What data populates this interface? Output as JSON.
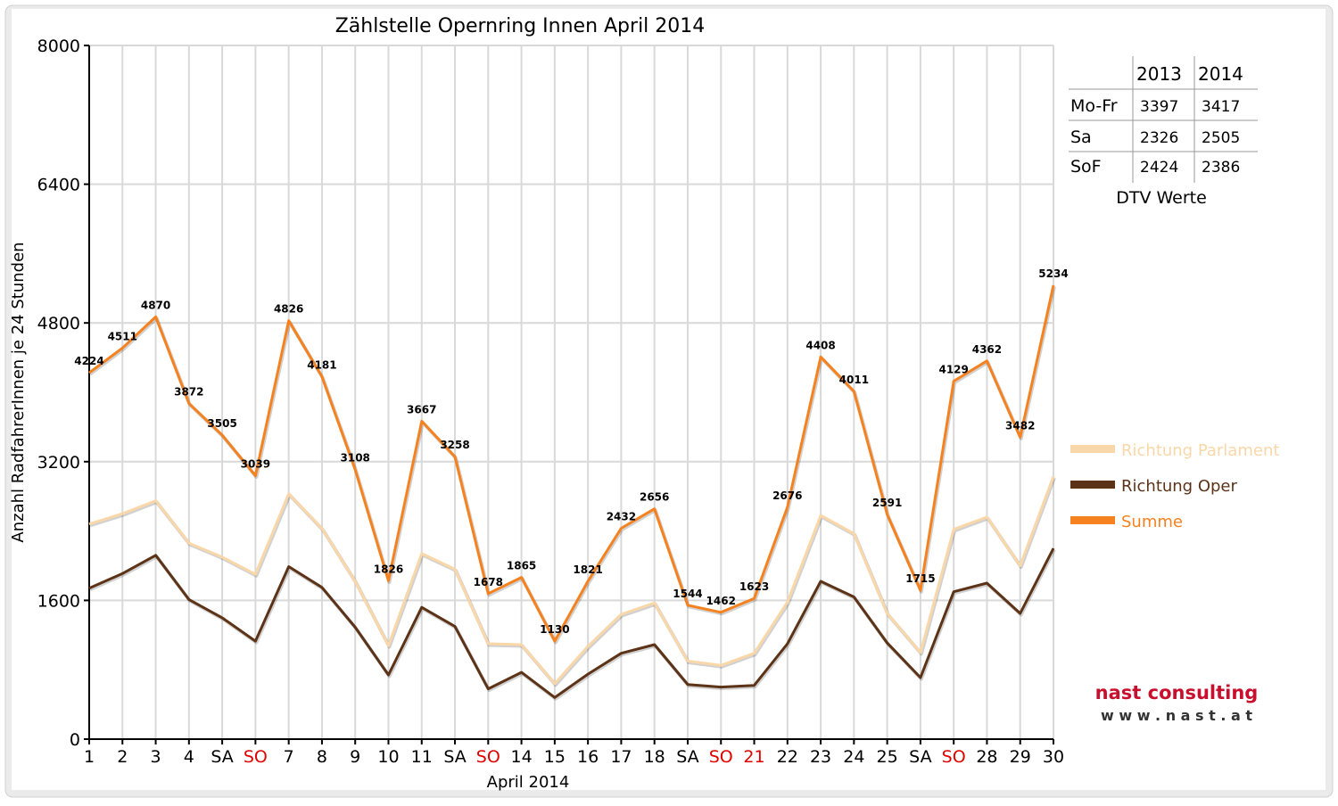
{
  "chart_data": {
    "type": "line",
    "title": "Zählstelle Opernring Innen April 2014",
    "xlabel": "April 2014",
    "ylabel": "Anzahl RadfahrerInnen je 24 Stunden",
    "ylim": [
      0,
      8000
    ],
    "yticks": [
      "0",
      "1600",
      "3200",
      "4800",
      "6400",
      "8000"
    ],
    "grid": true,
    "legend_position": "right",
    "categories": [
      "1",
      "2",
      "3",
      "4",
      "SA",
      "SO",
      "7",
      "8",
      "9",
      "10",
      "11",
      "SA",
      "SO",
      "14",
      "15",
      "16",
      "17",
      "18",
      "SA",
      "SO",
      "21",
      "22",
      "23",
      "24",
      "25",
      "SA",
      "SO",
      "28",
      "29",
      "30"
    ],
    "red_categories": [
      5,
      12,
      19,
      20,
      26
    ],
    "series": [
      {
        "name": "Richtung Parlament",
        "color": "#FAD7A8",
        "values": [
          2480,
          2600,
          2750,
          2260,
          2100,
          1900,
          2830,
          2430,
          1820,
          1080,
          2140,
          1960,
          1100,
          1090,
          640,
          1070,
          1440,
          1570,
          900,
          850,
          990,
          1580,
          2580,
          2370,
          1450,
          1000,
          2420,
          2560,
          2000,
          3030
        ]
      },
      {
        "name": "Richtung Oper",
        "color": "#5C3317",
        "values": [
          1740,
          1910,
          2120,
          1610,
          1400,
          1130,
          1990,
          1750,
          1290,
          740,
          1520,
          1300,
          580,
          770,
          480,
          750,
          990,
          1090,
          630,
          600,
          620,
          1100,
          1820,
          1640,
          1110,
          710,
          1700,
          1800,
          1450,
          2200
        ]
      },
      {
        "name": "Summe",
        "color": "#F5821F",
        "values": [
          4224,
          4511,
          4870,
          3872,
          3505,
          3039,
          4826,
          4181,
          3108,
          1826,
          3667,
          3258,
          1678,
          1865,
          1130,
          1821,
          2432,
          2656,
          1544,
          1462,
          1623,
          2676,
          4408,
          4011,
          2591,
          1715,
          4129,
          4362,
          3482,
          5234
        ]
      }
    ],
    "data_labels": [
      "4224",
      "4511",
      "4870",
      "3872",
      "3505",
      "3039",
      "4826",
      "4181",
      "3108",
      "1826",
      "3667",
      "3258",
      "1678",
      "1865",
      "1130",
      "1821",
      "2432",
      "2656",
      "1544",
      "1462",
      "1623",
      "2676",
      "4408",
      "4011",
      "2591",
      "1715",
      "4129",
      "4362",
      "3482",
      "5234"
    ],
    "colors": {
      "red_label": "#E00000",
      "axis": "#000000",
      "grid": "#D9D9D9",
      "frame_bg": "#EBEBEB"
    }
  },
  "dtv_table": {
    "caption": "DTV Werte",
    "headers": [
      "",
      "2013",
      "2014"
    ],
    "rows": [
      [
        "Mo-Fr",
        "3397",
        "3417"
      ],
      [
        "Sa",
        "2326",
        "2505"
      ],
      [
        "SoF",
        "2424",
        "2386"
      ]
    ]
  },
  "logo": {
    "name": "nast consulting",
    "url": "w w w . n a s t . a t"
  }
}
